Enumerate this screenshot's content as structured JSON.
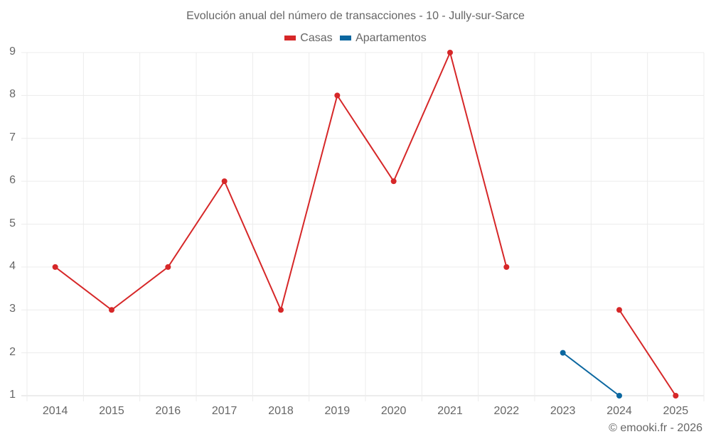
{
  "chart_data": {
    "type": "line",
    "title": "Evolución anual del número de transacciones - 10 - Jully-sur-Sarce",
    "xlabel": "",
    "ylabel": "",
    "categories": [
      "2014",
      "2015",
      "2016",
      "2017",
      "2018",
      "2019",
      "2020",
      "2021",
      "2022",
      "2023",
      "2024",
      "2025"
    ],
    "series": [
      {
        "name": "Casas",
        "color": "#d62728",
        "values": [
          4,
          3,
          4,
          6,
          3,
          8,
          6,
          9,
          4,
          null,
          3,
          1
        ]
      },
      {
        "name": "Apartamentos",
        "color": "#0b67a0",
        "values": [
          null,
          null,
          null,
          null,
          null,
          null,
          null,
          null,
          null,
          2,
          1,
          null
        ]
      }
    ],
    "yticks": [
      1,
      2,
      3,
      4,
      5,
      6,
      7,
      8,
      9
    ],
    "ylim": [
      1,
      9
    ],
    "grid": true,
    "legend_position": "top"
  },
  "credit": "© emooki.fr - 2026"
}
